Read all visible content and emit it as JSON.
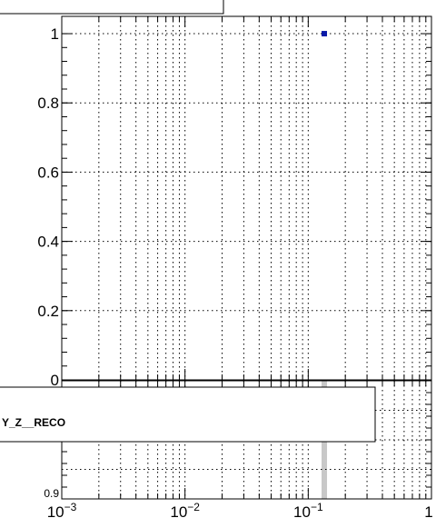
{
  "chart_data": [
    {
      "type": "scatter",
      "title": "",
      "xlabel": "",
      "ylabel": "",
      "x_scale": "log",
      "xlim": [
        0.001,
        1
      ],
      "ylim": [
        0,
        1.05
      ],
      "grid": true,
      "y_ticks": [
        {
          "value": 0,
          "label": "0"
        },
        {
          "value": 0.2,
          "label": "0.2"
        },
        {
          "value": 0.4,
          "label": "0.4"
        },
        {
          "value": 0.6,
          "label": "0.6"
        },
        {
          "value": 0.8,
          "label": "0.8"
        },
        {
          "value": 1,
          "label": "1"
        }
      ],
      "points": [
        {
          "x": 0.135,
          "y": 1.0
        }
      ],
      "marker_color": "#0a1aa8"
    },
    {
      "type": "bar",
      "title": "",
      "xlabel": "",
      "ylabel": "",
      "x_scale": "log",
      "xlim": [
        0.001,
        1
      ],
      "ylim": [
        0.9,
        1.1
      ],
      "grid": true,
      "y_ticks": [
        {
          "value": 0.9,
          "label": "0.9"
        }
      ],
      "x_ticks": [
        {
          "value": 0.001,
          "base": "10",
          "exp": "−3"
        },
        {
          "value": 0.01,
          "base": "10",
          "exp": "−2"
        },
        {
          "value": 0.1,
          "base": "10",
          "exp": "−1"
        },
        {
          "value": 1,
          "base": "1",
          "exp": ""
        }
      ],
      "band": {
        "x": 0.135,
        "color": "#c8c8c8"
      },
      "legend": {
        "label": "Y_Z__RECO",
        "placement": "top"
      }
    }
  ]
}
